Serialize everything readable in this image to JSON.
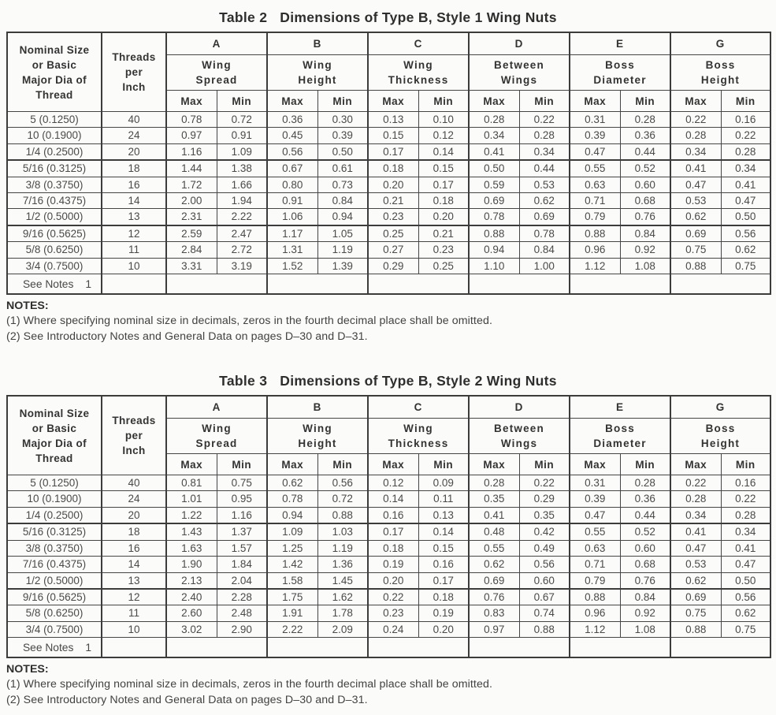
{
  "header": {
    "col1": "Nominal Size\nor Basic\nMajor Dia of\nThread",
    "col2": "Threads\nper\nInch",
    "groups": [
      {
        "letter": "A",
        "name": "Wing\nSpread"
      },
      {
        "letter": "B",
        "name": "Wing\nHeight"
      },
      {
        "letter": "C",
        "name": "Wing\nThickness"
      },
      {
        "letter": "D",
        "name": "Between\nWings"
      },
      {
        "letter": "E",
        "name": "Boss\nDiameter"
      },
      {
        "letter": "G",
        "name": "Boss\nHeight"
      }
    ],
    "max_label": "Max",
    "min_label": "Min"
  },
  "footer": {
    "label": "See Notes",
    "number": "1"
  },
  "notes": {
    "heading": "NOTES:",
    "lines": [
      "(1) Where specifying nominal size in decimals, zeros in the fourth decimal place shall be omitted.",
      "(2) See Introductory Notes and General Data on pages D–30 and D–31."
    ]
  },
  "tables": [
    {
      "label": "Table 2",
      "caption": "Dimensions of Type B, Style 1 Wing Nuts",
      "row_groups": [
        [
          [
            "5 (0.1250)",
            "40",
            "0.78",
            "0.72",
            "0.36",
            "0.30",
            "0.13",
            "0.10",
            "0.28",
            "0.22",
            "0.31",
            "0.28",
            "0.22",
            "0.16"
          ],
          [
            "10 (0.1900)",
            "24",
            "0.97",
            "0.91",
            "0.45",
            "0.39",
            "0.15",
            "0.12",
            "0.34",
            "0.28",
            "0.39",
            "0.36",
            "0.28",
            "0.22"
          ],
          [
            "1/4 (0.2500)",
            "20",
            "1.16",
            "1.09",
            "0.56",
            "0.50",
            "0.17",
            "0.14",
            "0.41",
            "0.34",
            "0.47",
            "0.44",
            "0.34",
            "0.28"
          ]
        ],
        [
          [
            "5/16 (0.3125)",
            "18",
            "1.44",
            "1.38",
            "0.67",
            "0.61",
            "0.18",
            "0.15",
            "0.50",
            "0.44",
            "0.55",
            "0.52",
            "0.41",
            "0.34"
          ],
          [
            "3/8 (0.3750)",
            "16",
            "1.72",
            "1.66",
            "0.80",
            "0.73",
            "0.20",
            "0.17",
            "0.59",
            "0.53",
            "0.63",
            "0.60",
            "0.47",
            "0.41"
          ],
          [
            "7/16 (0.4375)",
            "14",
            "2.00",
            "1.94",
            "0.91",
            "0.84",
            "0.21",
            "0.18",
            "0.69",
            "0.62",
            "0.71",
            "0.68",
            "0.53",
            "0.47"
          ],
          [
            "1/2 (0.5000)",
            "13",
            "2.31",
            "2.22",
            "1.06",
            "0.94",
            "0.23",
            "0.20",
            "0.78",
            "0.69",
            "0.79",
            "0.76",
            "0.62",
            "0.50"
          ]
        ],
        [
          [
            "9/16 (0.5625)",
            "12",
            "2.59",
            "2.47",
            "1.17",
            "1.05",
            "0.25",
            "0.21",
            "0.88",
            "0.78",
            "0.88",
            "0.84",
            "0.69",
            "0.56"
          ],
          [
            "5/8 (0.6250)",
            "11",
            "2.84",
            "2.72",
            "1.31",
            "1.19",
            "0.27",
            "0.23",
            "0.94",
            "0.84",
            "0.96",
            "0.92",
            "0.75",
            "0.62"
          ],
          [
            "3/4 (0.7500)",
            "10",
            "3.31",
            "3.19",
            "1.52",
            "1.39",
            "0.29",
            "0.25",
            "1.10",
            "1.00",
            "1.12",
            "1.08",
            "0.88",
            "0.75"
          ]
        ]
      ]
    },
    {
      "label": "Table 3",
      "caption": "Dimensions of Type B, Style 2 Wing Nuts",
      "row_groups": [
        [
          [
            "5 (0.1250)",
            "40",
            "0.81",
            "0.75",
            "0.62",
            "0.56",
            "0.12",
            "0.09",
            "0.28",
            "0.22",
            "0.31",
            "0.28",
            "0.22",
            "0.16"
          ],
          [
            "10 (0.1900)",
            "24",
            "1.01",
            "0.95",
            "0.78",
            "0.72",
            "0.14",
            "0.11",
            "0.35",
            "0.29",
            "0.39",
            "0.36",
            "0.28",
            "0.22"
          ],
          [
            "1/4 (0.2500)",
            "20",
            "1.22",
            "1.16",
            "0.94",
            "0.88",
            "0.16",
            "0.13",
            "0.41",
            "0.35",
            "0.47",
            "0.44",
            "0.34",
            "0.28"
          ]
        ],
        [
          [
            "5/16 (0.3125)",
            "18",
            "1.43",
            "1.37",
            "1.09",
            "1.03",
            "0.17",
            "0.14",
            "0.48",
            "0.42",
            "0.55",
            "0.52",
            "0.41",
            "0.34"
          ],
          [
            "3/8 (0.3750)",
            "16",
            "1.63",
            "1.57",
            "1.25",
            "1.19",
            "0.18",
            "0.15",
            "0.55",
            "0.49",
            "0.63",
            "0.60",
            "0.47",
            "0.41"
          ],
          [
            "7/16 (0.4375)",
            "14",
            "1.90",
            "1.84",
            "1.42",
            "1.36",
            "0.19",
            "0.16",
            "0.62",
            "0.56",
            "0.71",
            "0.68",
            "0.53",
            "0.47"
          ],
          [
            "1/2 (0.5000)",
            "13",
            "2.13",
            "2.04",
            "1.58",
            "1.45",
            "0.20",
            "0.17",
            "0.69",
            "0.60",
            "0.79",
            "0.76",
            "0.62",
            "0.50"
          ]
        ],
        [
          [
            "9/16 (0.5625)",
            "12",
            "2.40",
            "2.28",
            "1.75",
            "1.62",
            "0.22",
            "0.18",
            "0.76",
            "0.67",
            "0.88",
            "0.84",
            "0.69",
            "0.56"
          ],
          [
            "5/8 (0.6250)",
            "11",
            "2.60",
            "2.48",
            "1.91",
            "1.78",
            "0.23",
            "0.19",
            "0.83",
            "0.74",
            "0.96",
            "0.92",
            "0.75",
            "0.62"
          ],
          [
            "3/4 (0.7500)",
            "10",
            "3.02",
            "2.90",
            "2.22",
            "2.09",
            "0.24",
            "0.20",
            "0.97",
            "0.88",
            "1.12",
            "1.08",
            "0.88",
            "0.75"
          ]
        ]
      ]
    }
  ]
}
